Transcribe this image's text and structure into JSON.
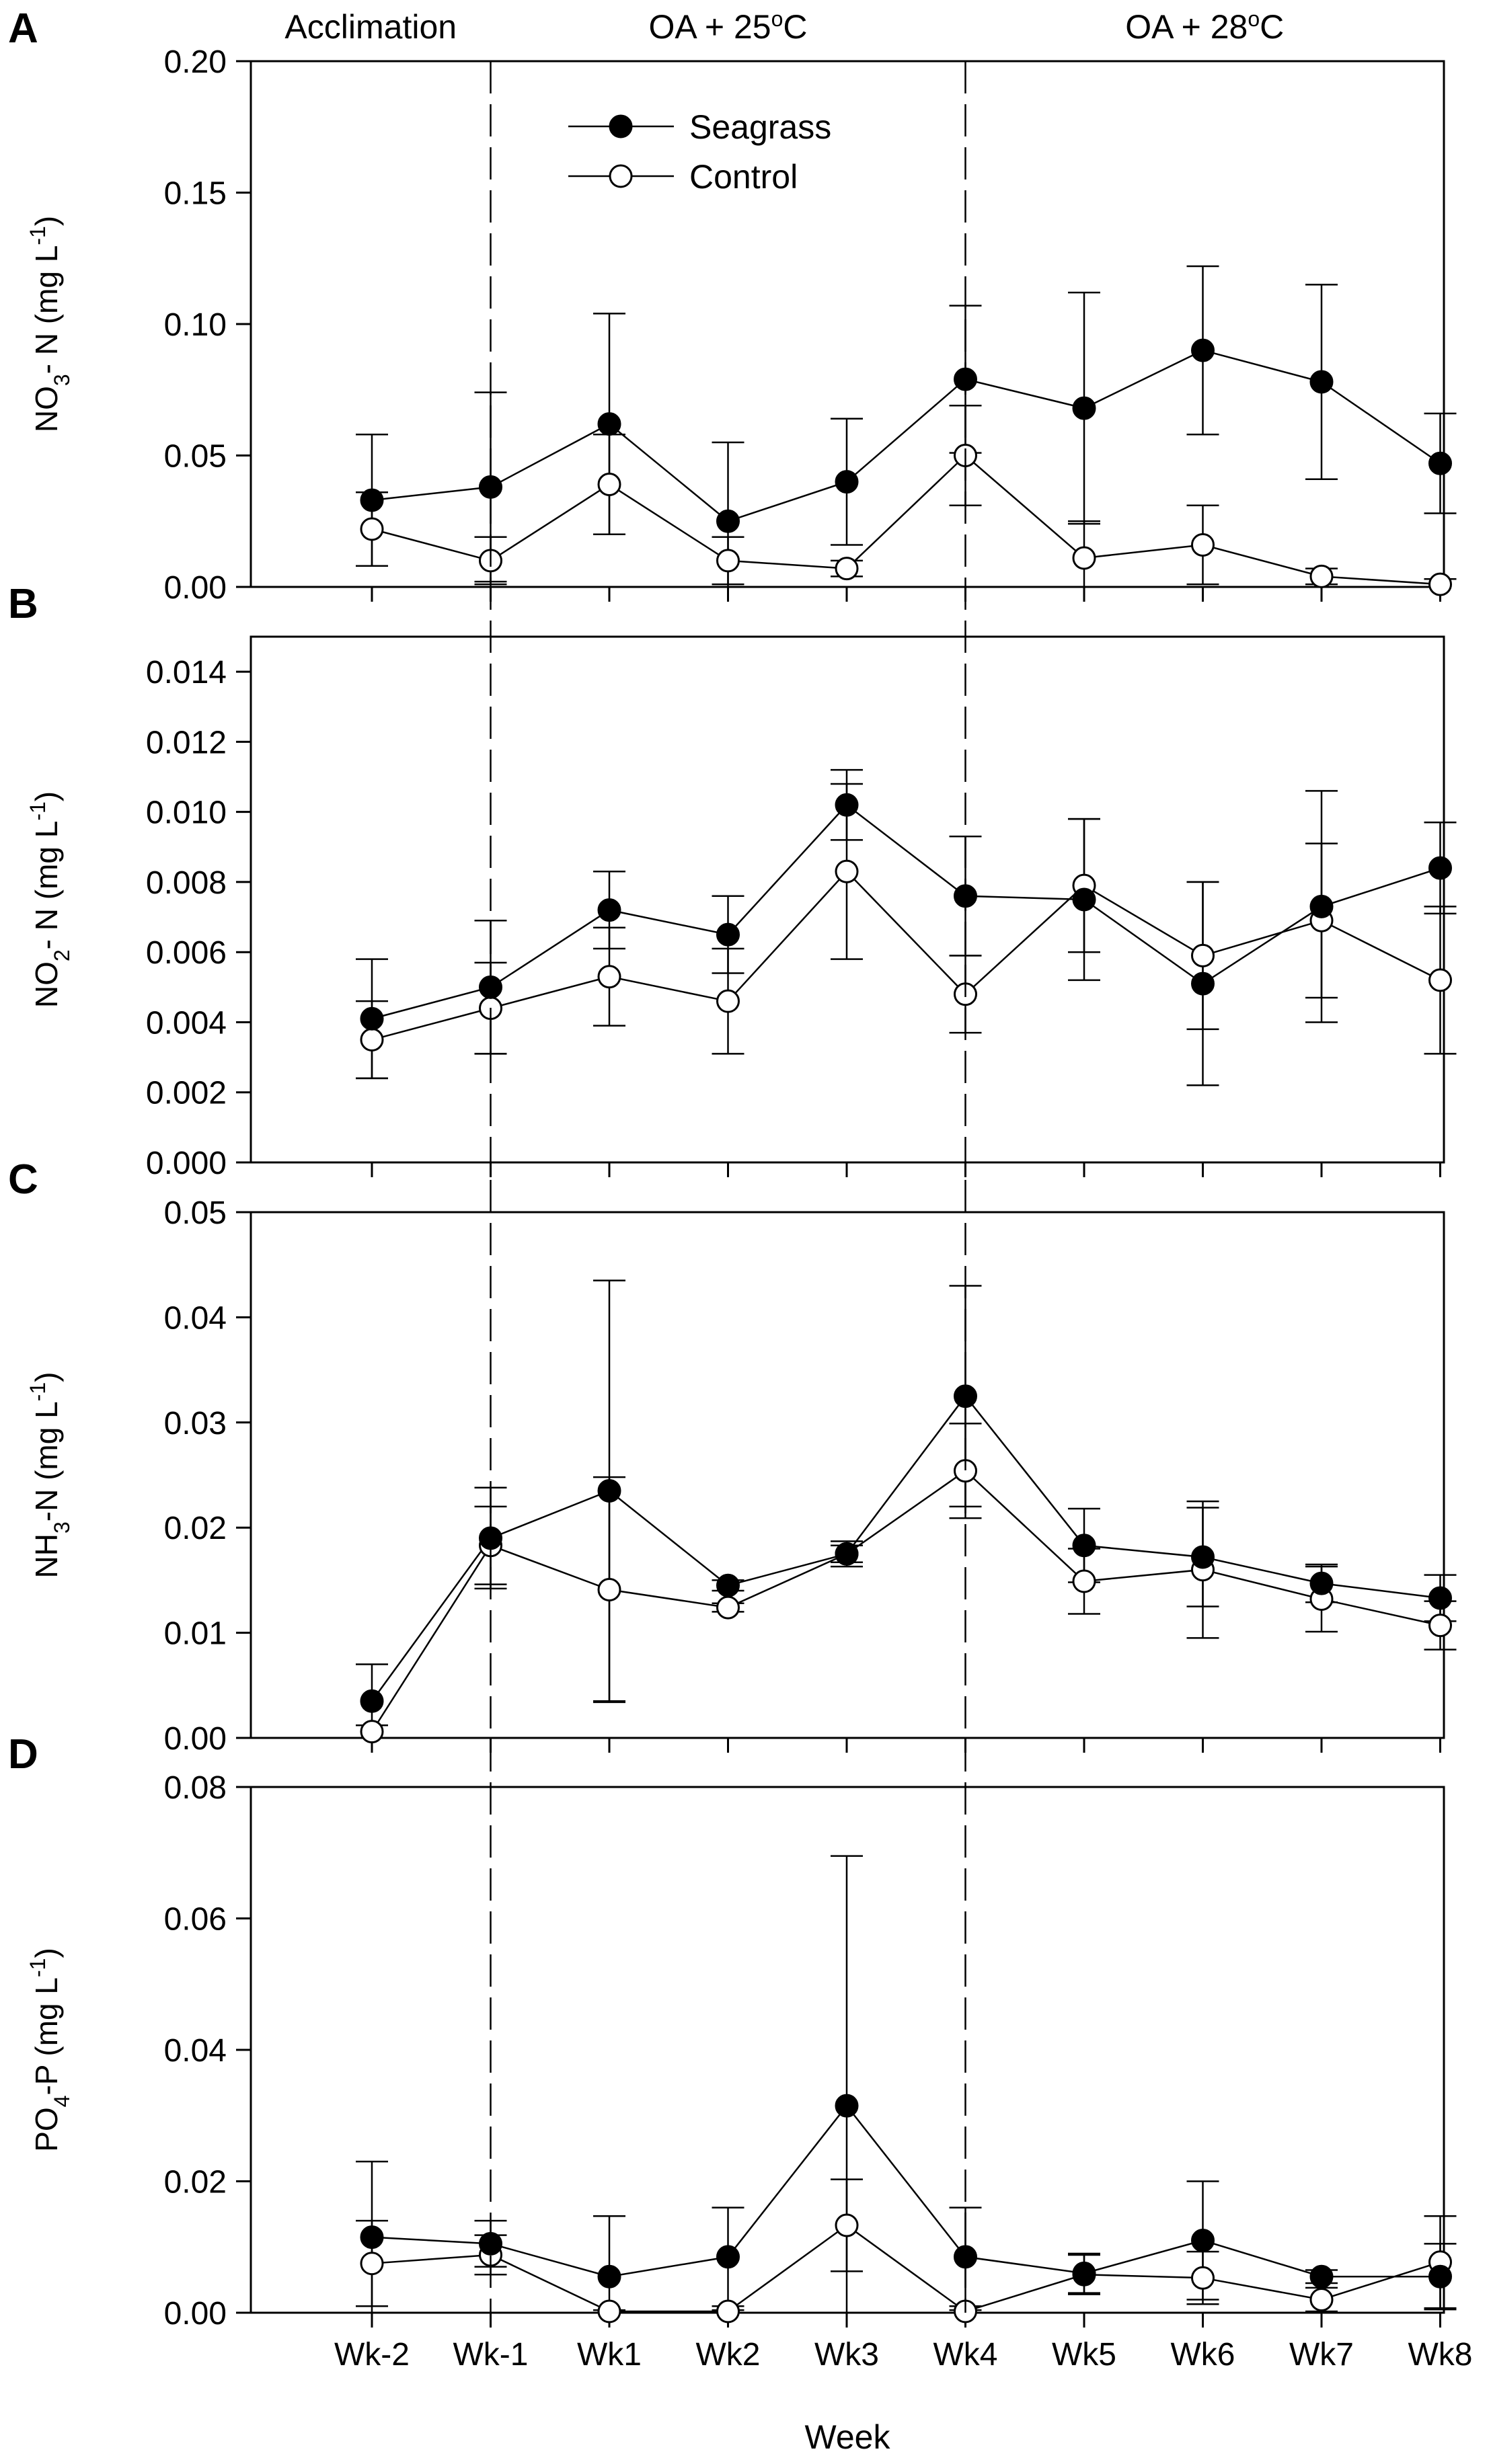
{
  "chart_data": {
    "type": "line",
    "xlabel": "Week",
    "categories": [
      "Wk-2",
      "Wk-1",
      "Wk1",
      "Wk2",
      "Wk3",
      "Wk4",
      "Wk5",
      "Wk6",
      "Wk7",
      "Wk8"
    ],
    "phases": [
      {
        "label": "Acclimation",
        "sup": ""
      },
      {
        "label": "OA + 25",
        "sup": "o",
        "suffix": "C"
      },
      {
        "label": "OA + 28",
        "sup": "o",
        "suffix": "C"
      }
    ],
    "phase_boundaries": [
      "Wk-1",
      "Wk4"
    ],
    "legend": {
      "position": "top-center",
      "entries": [
        {
          "name": "Seagrass",
          "marker": "filled-circle"
        },
        {
          "name": "Control",
          "marker": "open-circle"
        }
      ]
    },
    "panels": [
      {
        "letter": "A",
        "ylabel_parts": [
          [
            "NO",
            ""
          ],
          [
            "3",
            "sub"
          ],
          [
            "- N (mg L",
            ""
          ],
          [
            "-1",
            "sup"
          ],
          [
            ")",
            ""
          ]
        ],
        "ylim": [
          0,
          0.2
        ],
        "yticks": [
          0.0,
          0.05,
          0.1,
          0.15,
          0.2
        ],
        "ytick_labels": [
          "0.00",
          "0.05",
          "0.10",
          "0.15",
          "0.20"
        ],
        "series": [
          {
            "name": "Seagrass",
            "values": [
              0.033,
              0.038,
              0.062,
              0.025,
              0.04,
              0.079,
              0.068,
              0.09,
              0.078,
              0.047
            ],
            "errors": [
              0.025,
              0.036,
              0.042,
              0.03,
              0.024,
              0.028,
              0.044,
              0.032,
              0.037,
              0.019
            ]
          },
          {
            "name": "Control",
            "values": [
              0.022,
              0.01,
              0.039,
              0.01,
              0.007,
              0.05,
              0.011,
              0.016,
              0.004,
              0.001
            ],
            "errors": [
              0.014,
              0.009,
              0.019,
              0.009,
              0.003,
              0.019,
              0.014,
              0.015,
              0.003,
              0.002
            ]
          }
        ]
      },
      {
        "letter": "B",
        "ylabel_parts": [
          [
            "NO",
            ""
          ],
          [
            "2",
            "sub"
          ],
          [
            "- N (mg L",
            ""
          ],
          [
            "-1",
            "sup"
          ],
          [
            ")",
            ""
          ]
        ],
        "ylim": [
          0,
          0.015
        ],
        "yticks": [
          0.0,
          0.002,
          0.004,
          0.006,
          0.008,
          0.01,
          0.012,
          0.014
        ],
        "ytick_labels": [
          "0.000",
          "0.002",
          "0.004",
          "0.006",
          "0.008",
          "0.010",
          "0.012",
          "0.014"
        ],
        "series": [
          {
            "name": "Seagrass",
            "values": [
              0.0041,
              0.005,
              0.0072,
              0.0065,
              0.0102,
              0.0076,
              0.0075,
              0.0051,
              0.0073,
              0.0084
            ],
            "errors": [
              0.0017,
              0.0019,
              0.0011,
              0.0011,
              0.001,
              0.0017,
              0.0023,
              0.0029,
              0.0033,
              0.0013
            ]
          },
          {
            "name": "Control",
            "values": [
              0.0035,
              0.0044,
              0.0053,
              0.0046,
              0.0083,
              0.0048,
              0.0079,
              0.0059,
              0.0069,
              0.0052
            ],
            "errors": [
              0.0011,
              0.0013,
              0.0014,
              0.0015,
              0.0025,
              0.0011,
              0.0019,
              0.0021,
              0.0022,
              0.0021
            ]
          }
        ]
      },
      {
        "letter": "C",
        "ylabel_parts": [
          [
            "NH",
            ""
          ],
          [
            "3",
            "sub"
          ],
          [
            "-N (mg L",
            ""
          ],
          [
            "-1",
            "sup"
          ],
          [
            ")",
            ""
          ]
        ],
        "ylim": [
          0,
          0.05
        ],
        "yticks": [
          0.0,
          0.01,
          0.02,
          0.03,
          0.04,
          0.05
        ],
        "ytick_labels": [
          "0.00",
          "0.01",
          "0.02",
          "0.03",
          "0.04",
          "0.05"
        ],
        "series": [
          {
            "name": "Seagrass",
            "values": [
              0.0035,
              0.019,
              0.0235,
              0.0145,
              0.0175,
              0.0325,
              0.0183,
              0.0172,
              0.0147,
              0.0133
            ],
            "errors": [
              0.0035,
              0.0048,
              0.02,
              0.0005,
              0.0012,
              0.0105,
              0.0035,
              0.0047,
              0.0018,
              0.0022
            ]
          },
          {
            "name": "Control",
            "values": [
              0.0006,
              0.0183,
              0.0141,
              0.0124,
              0.0175,
              0.0254,
              0.0149,
              0.016,
              0.0132,
              0.0107
            ],
            "errors": [
              0.0006,
              0.0037,
              0.0107,
              0.0004,
              0.0008,
              0.0045,
              0.0031,
              0.0065,
              0.0031,
              0.0023
            ]
          }
        ]
      },
      {
        "letter": "D",
        "ylabel_parts": [
          [
            "PO",
            ""
          ],
          [
            "4",
            "sub"
          ],
          [
            "-P (mg L",
            ""
          ],
          [
            "-1",
            "sup"
          ],
          [
            ")",
            ""
          ]
        ],
        "ylim": [
          0,
          0.08
        ],
        "yticks": [
          0.0,
          0.02,
          0.04,
          0.06,
          0.08
        ],
        "ytick_labels": [
          "0.00",
          "0.02",
          "0.04",
          "0.06",
          "0.08"
        ],
        "series": [
          {
            "name": "Seagrass",
            "values": [
              0.0115,
              0.0105,
              0.0055,
              0.0085,
              0.0315,
              0.0085,
              0.006,
              0.011,
              0.0055,
              0.0055
            ],
            "errors": [
              0.0115,
              0.0035,
              0.0092,
              0.0075,
              0.038,
              0.0075,
              0.003,
              0.009,
              0.001,
              0.005
            ]
          },
          {
            "name": "Control",
            "values": [
              0.0075,
              0.0088,
              0.0002,
              0.0002,
              0.0133,
              0.0002,
              0.0058,
              0.0053,
              0.002,
              0.0077
            ],
            "errors": [
              0.0065,
              0.003,
              0.0002,
              0.0002,
              0.007,
              0.0002,
              0.003,
              0.004,
              0.0018,
              0.007
            ]
          }
        ]
      }
    ]
  }
}
